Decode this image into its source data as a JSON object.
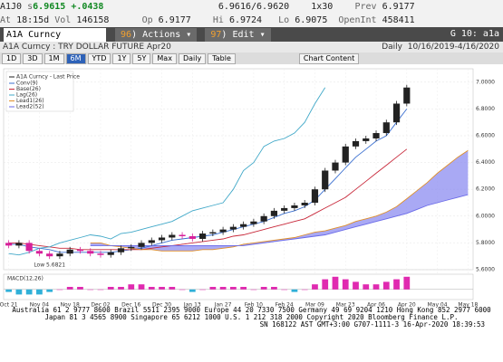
{
  "header": {
    "ticker": "A1J0",
    "last": "6.9615",
    "last_flag": "s",
    "change": "+.0438",
    "bidask": "6.9616/6.9620",
    "size": "1x30",
    "prev_label": "Prev",
    "prev": "6.9177",
    "time_label": "At",
    "time": "18:15d",
    "vol_label": "Vol",
    "vol": "146158",
    "open_label": "Op",
    "open": "6.9177",
    "high_label": "Hi",
    "high": "6.9724",
    "low_label": "Lo",
    "low": "6.9075",
    "oi_label": "OpenInt",
    "oi": "458411"
  },
  "command": {
    "security": "A1A Curncy",
    "actions": "Actions",
    "actions_num": "96",
    "edit": "Edit",
    "edit_num": "97",
    "page": "G 10: a1a"
  },
  "subtitle": {
    "name": "A1A Curncy : TRY DOLLAR FUTURE Apr20",
    "period": "Daily",
    "range": "10/16/2019-4/16/2020"
  },
  "toolbar": {
    "buttons": [
      "1D",
      "3D",
      "1M",
      "6M",
      "YTD",
      "1Y",
      "5Y",
      "Max"
    ],
    "selected": 3,
    "freq": "Daily",
    "table": "Table",
    "content": "Chart Content"
  },
  "chart_data": {
    "type": "candlestick",
    "categories": [
      "Oct 21",
      null,
      null,
      "Nov 04",
      null,
      null,
      "Nov 18",
      null,
      null,
      "Dec 02",
      null,
      null,
      "Dec 16",
      null,
      null,
      "Dec 30",
      null,
      null,
      "Jan 13",
      null,
      null,
      "Jan 27",
      null,
      null,
      "Feb 10",
      null,
      null,
      "Feb 24",
      null,
      null,
      "Mar 09",
      null,
      null,
      "Mar 23",
      null,
      null,
      "Apr 06",
      null,
      null,
      "Apr 20",
      null,
      null,
      "May 04",
      null,
      null,
      "May 18"
    ],
    "open": [
      5.8,
      5.78,
      5.8,
      5.74,
      5.72,
      5.7,
      5.72,
      5.75,
      5.74,
      5.72,
      5.71,
      5.73,
      5.76,
      5.77,
      5.8,
      5.82,
      5.84,
      5.86,
      5.85,
      5.83,
      5.87,
      5.88,
      5.9,
      5.92,
      5.94,
      5.96,
      6.0,
      6.04,
      6.06,
      6.08,
      6.1,
      6.2,
      6.34,
      6.4,
      6.52,
      6.56,
      6.58,
      6.62,
      6.7,
      6.84,
      null,
      null,
      null,
      null,
      null,
      null
    ],
    "high": [
      5.82,
      5.82,
      5.82,
      5.76,
      5.74,
      5.74,
      5.77,
      5.77,
      5.76,
      5.74,
      5.75,
      5.78,
      5.79,
      5.82,
      5.84,
      5.86,
      5.88,
      5.88,
      5.87,
      5.89,
      5.9,
      5.92,
      5.94,
      5.96,
      5.98,
      6.02,
      6.06,
      6.08,
      6.1,
      6.12,
      6.22,
      6.36,
      6.42,
      6.54,
      6.58,
      6.6,
      6.64,
      6.72,
      6.86,
      6.98,
      null,
      null,
      null,
      null,
      null,
      null
    ],
    "low": [
      5.76,
      5.76,
      5.72,
      5.7,
      5.68,
      5.68,
      5.7,
      5.72,
      5.7,
      5.69,
      5.69,
      5.71,
      5.74,
      5.75,
      5.78,
      5.8,
      5.82,
      5.83,
      5.81,
      5.81,
      5.85,
      5.86,
      5.88,
      5.9,
      5.92,
      5.94,
      5.98,
      6.02,
      6.04,
      6.06,
      6.08,
      6.18,
      6.32,
      6.38,
      6.5,
      6.54,
      6.56,
      6.6,
      6.68,
      6.82,
      null,
      null,
      null,
      null,
      null,
      null
    ],
    "close": [
      5.78,
      5.8,
      5.74,
      5.72,
      5.7,
      5.72,
      5.75,
      5.74,
      5.72,
      5.71,
      5.73,
      5.76,
      5.77,
      5.8,
      5.82,
      5.84,
      5.86,
      5.85,
      5.83,
      5.87,
      5.88,
      5.9,
      5.92,
      5.94,
      5.96,
      6.0,
      6.04,
      6.06,
      6.08,
      6.1,
      6.2,
      6.34,
      6.4,
      6.52,
      6.56,
      6.58,
      6.62,
      6.7,
      6.84,
      6.96,
      null,
      null,
      null,
      null,
      null,
      null
    ],
    "candle_name": "A1A Curncy - Last Price",
    "up_color": "#222222",
    "down_color": "#d6209a",
    "series": [
      {
        "name": "Conv(9)",
        "color": "#3a6fd0",
        "values": [
          5.79,
          5.79,
          5.77,
          5.76,
          5.75,
          5.73,
          5.73,
          5.73,
          5.73,
          5.73,
          5.73,
          5.74,
          5.75,
          5.76,
          5.78,
          5.8,
          5.82,
          5.83,
          5.84,
          5.85,
          5.86,
          5.88,
          5.9,
          5.92,
          5.94,
          5.96,
          5.99,
          6.02,
          6.04,
          6.07,
          6.12,
          6.2,
          6.28,
          6.36,
          6.44,
          6.5,
          6.56,
          6.6,
          6.7,
          6.8,
          null,
          null,
          null,
          null,
          null,
          null
        ]
      },
      {
        "name": "Base(26)",
        "color": "#c8283a",
        "values": [
          5.8,
          5.8,
          5.79,
          5.78,
          5.77,
          5.76,
          5.76,
          5.75,
          5.75,
          5.75,
          5.75,
          5.75,
          5.75,
          5.75,
          5.76,
          5.77,
          5.78,
          5.79,
          5.8,
          5.81,
          5.82,
          5.83,
          5.85,
          5.86,
          5.88,
          5.9,
          5.92,
          5.94,
          5.96,
          5.98,
          6.02,
          6.06,
          6.1,
          6.14,
          6.2,
          6.26,
          6.32,
          6.38,
          6.44,
          6.5,
          null,
          null,
          null,
          null,
          null,
          null
        ]
      },
      {
        "name": "Lag(26)",
        "color": "#40a8c8",
        "values": [
          5.72,
          5.71,
          5.73,
          5.76,
          5.77,
          5.8,
          5.82,
          5.84,
          5.86,
          5.85,
          5.83,
          5.87,
          5.88,
          5.9,
          5.92,
          5.94,
          5.96,
          6.0,
          6.04,
          6.06,
          6.08,
          6.1,
          6.2,
          6.34,
          6.4,
          6.52,
          6.56,
          6.58,
          6.62,
          6.7,
          6.84,
          6.96,
          null,
          null,
          null,
          null,
          null,
          null,
          null,
          null,
          null,
          null,
          null,
          null,
          null,
          null
        ]
      },
      {
        "name": "Lead1(26)",
        "color": "#e0902a",
        "values": [
          null,
          null,
          null,
          null,
          null,
          null,
          null,
          null,
          5.8,
          5.8,
          5.78,
          5.77,
          5.76,
          5.75,
          5.75,
          5.74,
          5.74,
          5.74,
          5.74,
          5.75,
          5.75,
          5.76,
          5.77,
          5.79,
          5.8,
          5.81,
          5.82,
          5.83,
          5.84,
          5.86,
          5.88,
          5.89,
          5.91,
          5.93,
          5.96,
          5.98,
          6.0,
          6.03,
          6.07,
          6.13,
          6.19,
          6.25,
          6.32,
          6.38,
          6.44,
          6.49
        ]
      },
      {
        "name": "Lead2(52)",
        "color": "#6a6ae8",
        "values": [
          null,
          null,
          null,
          null,
          null,
          null,
          null,
          null,
          5.78,
          5.78,
          5.78,
          5.78,
          5.78,
          5.78,
          5.78,
          5.78,
          5.78,
          5.78,
          5.78,
          5.78,
          5.78,
          5.78,
          5.78,
          5.78,
          5.79,
          5.8,
          5.81,
          5.82,
          5.83,
          5.84,
          5.85,
          5.86,
          5.88,
          5.9,
          5.92,
          5.94,
          5.96,
          5.98,
          6.0,
          6.02,
          6.05,
          6.08,
          6.1,
          6.12,
          6.14,
          6.16
        ]
      }
    ],
    "cloud_color": "#8c8cf0",
    "ylim": [
      5.6,
      7.1
    ],
    "yticks": [
      {
        "value": 5.6,
        "label": "5.6000"
      },
      {
        "value": 5.8,
        "label": "5.8000"
      },
      {
        "value": 6,
        "label": "6.0000"
      },
      {
        "value": 6.2,
        "label": "6.2000"
      },
      {
        "value": 6.4,
        "label": "6.4000"
      },
      {
        "value": 6.6,
        "label": "6.6000"
      },
      {
        "value": 6.8,
        "label": "6.8000"
      },
      {
        "value": 7,
        "label": "7.0000"
      }
    ],
    "grid": true,
    "low_note": "Low 5.6821",
    "macd": {
      "name": "MACD(12,26)",
      "up_color": "#e02ab0",
      "down_color": "#30b0d8",
      "ylim": [
        -0.04,
        0.06
      ],
      "values": [
        -0.01,
        -0.02,
        -0.02,
        -0.02,
        -0.01,
        0.0,
        0.01,
        0.01,
        0.0,
        0.0,
        0.01,
        0.01,
        0.02,
        0.02,
        0.01,
        0.01,
        0.01,
        0.0,
        -0.01,
        0.0,
        0.01,
        0.01,
        0.01,
        0.01,
        0.0,
        0.01,
        0.01,
        0.0,
        -0.01,
        0.0,
        0.02,
        0.04,
        0.05,
        0.04,
        0.03,
        0.02,
        0.02,
        0.03,
        0.04,
        0.05,
        null,
        null,
        null,
        null,
        null,
        null
      ]
    }
  },
  "footer": {
    "line1": "Australia 61 2 9777 8600 Brazil 5511 2395 9000 Europe 44 20 7330 7500 Germany 49 69 9204 1210 Hong Kong 852 2977 6000",
    "line2": "Japan 81 3 4565 8900 Singapore 65 6212 1000 U.S. 1 212 318 2000 Copyright 2020 Bloomberg Finance L.P.",
    "line3": "SN 168122 AST GMT+3:00 G707-1111-3 16-Apr-2020 18:39:53"
  }
}
